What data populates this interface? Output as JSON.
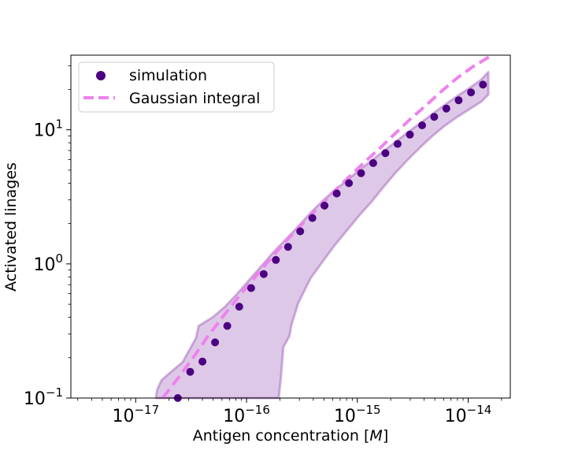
{
  "chart_data": {
    "type": "scatter",
    "xlabel": "Antigen concentration [M]",
    "xlabel_parts": {
      "prefix": "Antigen concentration [",
      "italic": "M",
      "suffix": "]"
    },
    "ylabel": "Activated linages",
    "x_scale": "log",
    "y_scale": "log",
    "xlim": [
      2.6e-18,
      2.4e-14
    ],
    "ylim": [
      0.1,
      36
    ],
    "x_ticks": [
      {
        "value": 1e-17,
        "base": "10",
        "exp": "−17"
      },
      {
        "value": 1e-16,
        "base": "10",
        "exp": "−16"
      },
      {
        "value": 1e-15,
        "base": "10",
        "exp": "−15"
      },
      {
        "value": 1e-14,
        "base": "10",
        "exp": "−14"
      }
    ],
    "y_ticks": [
      {
        "value": 0.1,
        "base": "10",
        "exp": "−1"
      },
      {
        "value": 1,
        "base": "10",
        "exp": "0"
      },
      {
        "value": 10,
        "base": "10",
        "exp": "1"
      }
    ],
    "grid": false,
    "legend_position": "top-left",
    "legend": [
      {
        "label": "simulation",
        "marker": "circle",
        "color": "#4b0082"
      },
      {
        "label": "Gaussian integral",
        "marker": "dashed-line",
        "color": "#ee82ee"
      }
    ],
    "series": [
      {
        "name": "simulation",
        "kind": "points",
        "color": "#4b0082",
        "points": [
          [
            2.4e-17,
            0.1
          ],
          [
            3.1e-17,
            0.157
          ],
          [
            4e-17,
            0.187
          ],
          [
            5.2e-17,
            0.26
          ],
          [
            6.7e-17,
            0.345
          ],
          [
            8.6e-17,
            0.48
          ],
          [
            1.1e-16,
            0.66
          ],
          [
            1.43e-16,
            0.84
          ],
          [
            1.84e-16,
            1.07
          ],
          [
            2.37e-16,
            1.34
          ],
          [
            3.05e-16,
            1.75
          ],
          [
            3.93e-16,
            2.2
          ],
          [
            5.06e-16,
            2.72
          ],
          [
            6.52e-16,
            3.35
          ],
          [
            8.4e-16,
            4.0
          ],
          [
            1.08e-15,
            4.75
          ],
          [
            1.39e-15,
            5.65
          ],
          [
            1.79e-15,
            6.7
          ],
          [
            2.31e-15,
            7.85
          ],
          [
            2.98e-15,
            9.2
          ],
          [
            3.84e-15,
            10.8
          ],
          [
            4.94e-15,
            12.5
          ],
          [
            6.36e-15,
            14.4
          ],
          [
            8.2e-15,
            16.6
          ],
          [
            1.06e-14,
            19.0
          ],
          [
            1.36e-14,
            21.7
          ]
        ]
      },
      {
        "name": "simulation range",
        "kind": "band",
        "color": "#9b59b6",
        "upper": [
          [
            1.52e-17,
            0.1
          ],
          [
            1.56e-17,
            0.115
          ],
          [
            1.7e-17,
            0.135
          ],
          [
            2.05e-17,
            0.155
          ],
          [
            2.65e-17,
            0.185
          ],
          [
            3.5e-17,
            0.28
          ],
          [
            3.7e-17,
            0.345
          ],
          [
            4.95e-17,
            0.4
          ],
          [
            6.4e-17,
            0.48
          ],
          [
            8.25e-17,
            0.6
          ],
          [
            1.06e-16,
            0.76
          ],
          [
            1.37e-16,
            0.97
          ],
          [
            1.76e-16,
            1.23
          ],
          [
            2.27e-16,
            1.53
          ],
          [
            2.93e-16,
            1.9
          ],
          [
            3.77e-16,
            2.4
          ],
          [
            4.86e-16,
            2.95
          ],
          [
            6.26e-16,
            3.55
          ],
          [
            8.06e-16,
            4.2
          ],
          [
            1.04e-15,
            5.0
          ],
          [
            1.34e-15,
            5.9
          ],
          [
            1.72e-15,
            6.9
          ],
          [
            2.22e-15,
            8.15
          ],
          [
            2.86e-15,
            9.6
          ],
          [
            3.69e-15,
            11.2
          ],
          [
            4.75e-15,
            13.1
          ],
          [
            6.12e-15,
            15.3
          ],
          [
            7.88e-15,
            17.7
          ],
          [
            1.02e-14,
            20.4
          ],
          [
            1.31e-14,
            23.6
          ],
          [
            1.52e-14,
            27.0
          ]
        ],
        "lower": [
          [
            1.52e-14,
            18.3
          ],
          [
            1.31e-14,
            16.2
          ],
          [
            1.02e-14,
            14.2
          ],
          [
            7.88e-15,
            12.4
          ],
          [
            6.12e-15,
            10.7
          ],
          [
            4.75e-15,
            9.0
          ],
          [
            3.69e-15,
            7.4
          ],
          [
            2.86e-15,
            6.0
          ],
          [
            2.22e-15,
            4.8
          ],
          [
            1.72e-15,
            3.75
          ],
          [
            1.34e-15,
            2.9
          ],
          [
            1.04e-15,
            2.3
          ],
          [
            8.06e-16,
            1.78
          ],
          [
            6.26e-16,
            1.38
          ],
          [
            4.86e-16,
            1.04
          ],
          [
            3.77e-16,
            0.78
          ],
          [
            2.93e-16,
            0.51
          ],
          [
            2.54e-16,
            0.35
          ],
          [
            2.44e-16,
            0.29
          ],
          [
            2.15e-16,
            0.24
          ],
          [
            2.04e-16,
            0.14
          ],
          [
            1.95e-16,
            0.1
          ]
        ]
      },
      {
        "name": "Gaussian integral",
        "kind": "line",
        "dashed": true,
        "color": "#ee82ee",
        "points": [
          [
            1.75e-17,
            0.1
          ],
          [
            2.4e-17,
            0.14
          ],
          [
            3.3e-17,
            0.2
          ],
          [
            4.5e-17,
            0.29
          ],
          [
            6.2e-17,
            0.41
          ],
          [
            8.5e-17,
            0.57
          ],
          [
            1.2e-16,
            0.8
          ],
          [
            1.65e-16,
            1.1
          ],
          [
            2.3e-16,
            1.5
          ],
          [
            3.2e-16,
            2.0
          ],
          [
            4.4e-16,
            2.6
          ],
          [
            6e-16,
            3.4
          ],
          [
            8.3e-16,
            4.4
          ],
          [
            1.15e-15,
            5.7
          ],
          [
            1.6e-15,
            7.3
          ],
          [
            2.2e-15,
            9.4
          ],
          [
            3e-15,
            12.0
          ],
          [
            4.2e-15,
            15.3
          ],
          [
            5.8e-15,
            19.5
          ],
          [
            8e-15,
            24.4
          ],
          [
            1.1e-14,
            29.5
          ],
          [
            1.55e-14,
            35.0
          ]
        ]
      }
    ]
  }
}
